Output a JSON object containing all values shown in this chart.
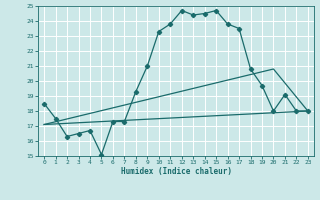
{
  "xlabel": "Humidex (Indice chaleur)",
  "ylabel": "",
  "xlim": [
    -0.5,
    23.5
  ],
  "ylim": [
    15,
    25
  ],
  "xticks": [
    0,
    1,
    2,
    3,
    4,
    5,
    6,
    7,
    8,
    9,
    10,
    11,
    12,
    13,
    14,
    15,
    16,
    17,
    18,
    19,
    20,
    21,
    22,
    23
  ],
  "yticks": [
    15,
    16,
    17,
    18,
    19,
    20,
    21,
    22,
    23,
    24,
    25
  ],
  "bg_color": "#cce8e8",
  "line_color": "#1a6b6b",
  "grid_color": "#b0d8d8",
  "curve1_x": [
    0,
    1,
    2,
    3,
    4,
    5,
    6,
    7,
    8,
    9,
    10,
    11,
    12,
    13,
    14,
    15,
    16,
    17,
    18,
    19,
    20,
    21,
    22,
    23
  ],
  "curve1_y": [
    18.5,
    17.5,
    16.3,
    16.5,
    16.7,
    15.1,
    17.3,
    17.3,
    19.3,
    21.0,
    23.3,
    23.8,
    24.7,
    24.4,
    24.5,
    24.7,
    23.8,
    23.5,
    20.8,
    19.7,
    18.0,
    19.1,
    18.0,
    18.0
  ],
  "curve2_x": [
    0,
    23
  ],
  "curve2_y": [
    17.1,
    18.0
  ],
  "curve3_x": [
    0,
    20,
    23
  ],
  "curve3_y": [
    17.1,
    20.8,
    18.0
  ]
}
